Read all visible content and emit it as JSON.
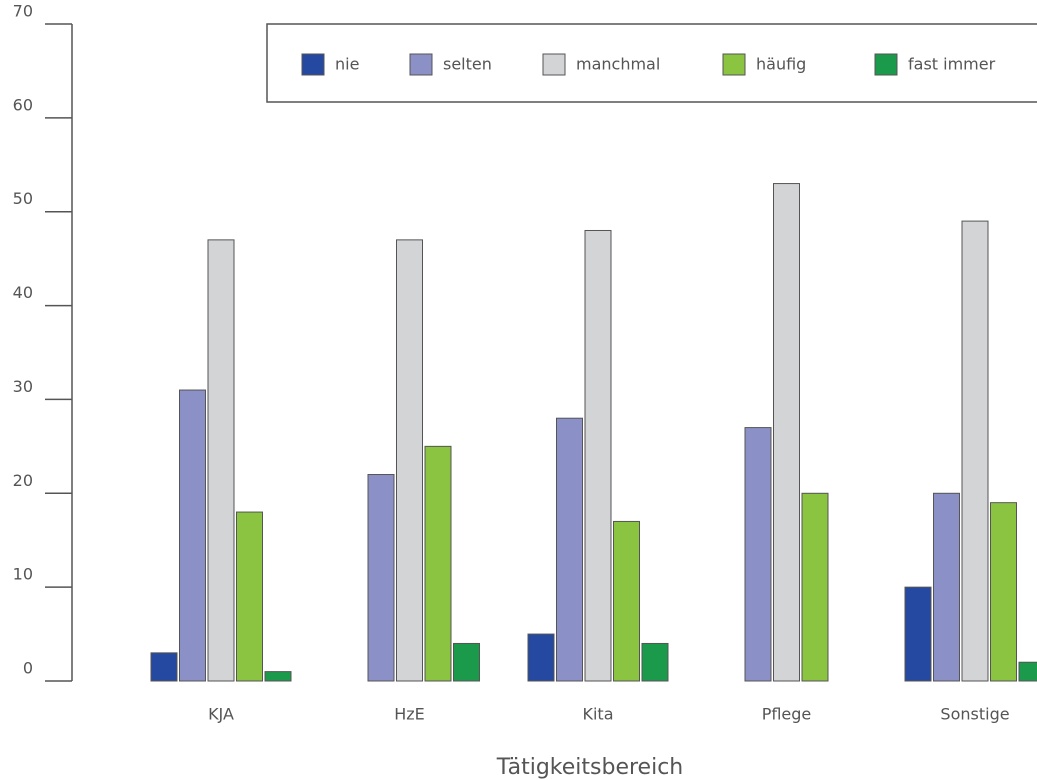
{
  "chart_data": {
    "type": "bar",
    "x_label": "Tätigkeitsbereich",
    "categories": [
      "KJA",
      "HzE",
      "Kita",
      "Pflege",
      "Sonstige"
    ],
    "series": [
      {
        "name": "nie",
        "color": "#2548a0",
        "values": [
          3,
          0,
          5,
          0,
          10
        ]
      },
      {
        "name": "selten",
        "color": "#8b90c6",
        "values": [
          31,
          22,
          28,
          27,
          20
        ]
      },
      {
        "name": "manchmal",
        "color": "#d3d4d6",
        "values": [
          47,
          47,
          48,
          53,
          49
        ]
      },
      {
        "name": "häufig",
        "color": "#8bc440",
        "values": [
          18,
          25,
          17,
          20,
          19
        ]
      },
      {
        "name": "fast immer",
        "color": "#1a9a4a",
        "values": [
          1,
          4,
          4,
          0,
          2
        ]
      }
    ],
    "ylim": [
      0,
      70
    ],
    "yticks": [
      0,
      10,
      20,
      30,
      40,
      50,
      60,
      70
    ],
    "grid": false
  }
}
